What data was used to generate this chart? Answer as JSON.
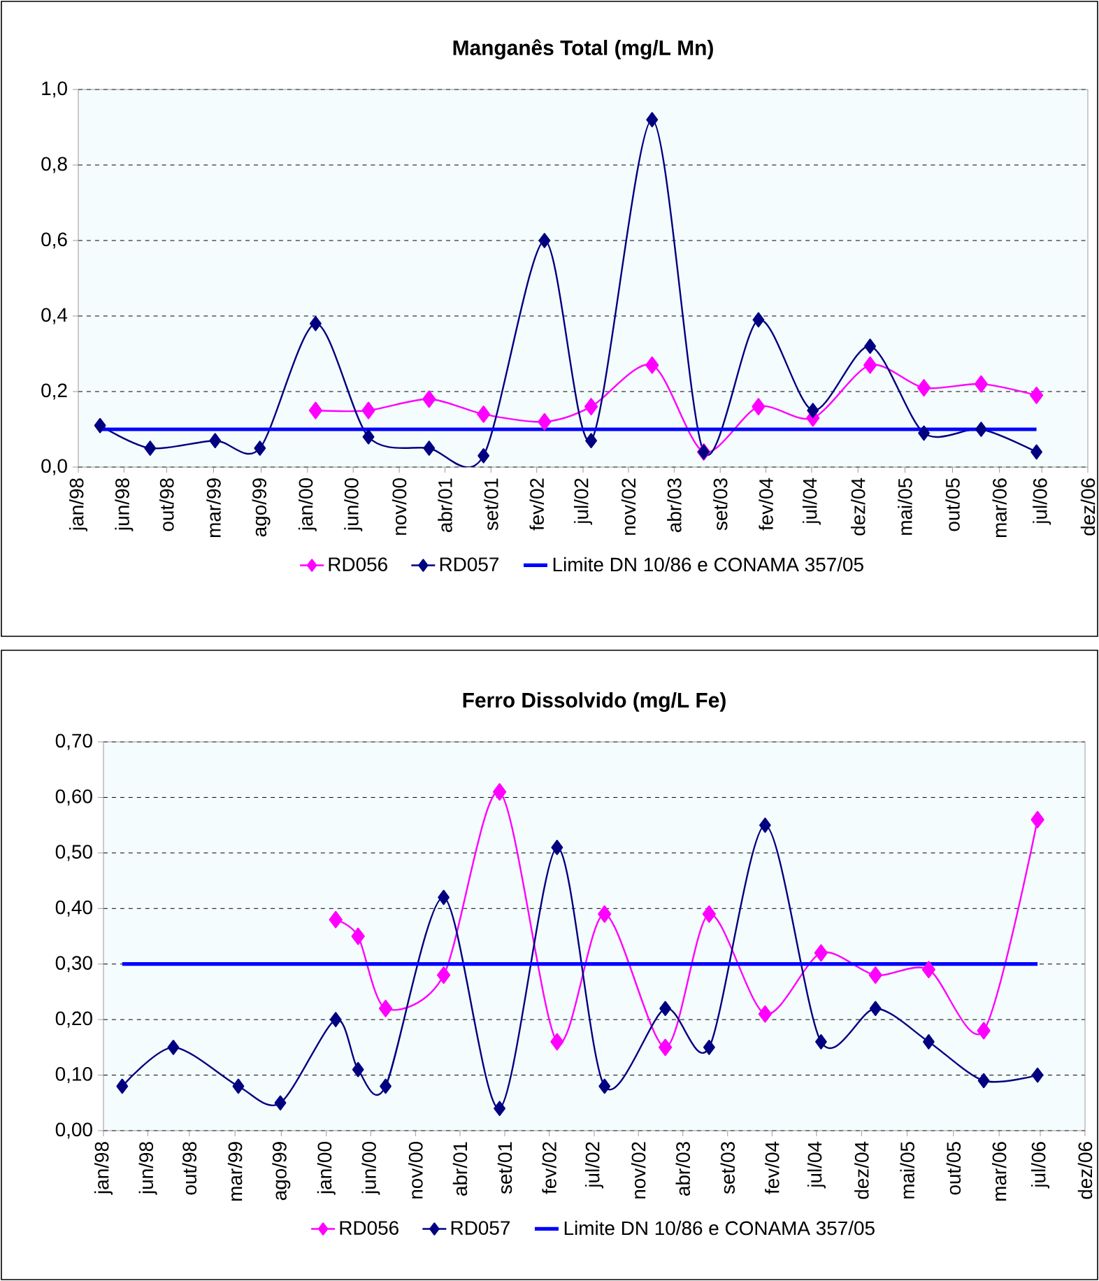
{
  "chart_data": [
    {
      "type": "line",
      "title": "Manganês Total (mg/L Mn)",
      "marker": "diamond",
      "grid": "y",
      "legend": "bottom",
      "xlim": [
        "1998-01-20",
        "2006-12-10"
      ],
      "xticks": [
        {
          "value": "1998-01-20",
          "label": "jan/98"
        },
        {
          "value": "1998-06-16",
          "label": "jun/98"
        },
        {
          "value": "1998-10-31",
          "label": "out/98"
        },
        {
          "value": "1999-03-31",
          "label": "mar/99"
        },
        {
          "value": "1999-08-31",
          "label": "ago/99"
        },
        {
          "value": "2000-01-27",
          "label": "jan/00"
        },
        {
          "value": "2000-06-22",
          "label": "jun/00"
        },
        {
          "value": "2000-11-17",
          "label": "nov/00"
        },
        {
          "value": "2001-04-13",
          "label": "abr/01"
        },
        {
          "value": "2001-09-08",
          "label": "set/01"
        },
        {
          "value": "2002-02-02",
          "label": "fev/02"
        },
        {
          "value": "2002-07-01",
          "label": "jul/02"
        },
        {
          "value": "2002-11-24",
          "label": "nov/02"
        },
        {
          "value": "2003-04-20",
          "label": "abr/03"
        },
        {
          "value": "2003-09-15",
          "label": "set/03"
        },
        {
          "value": "2004-02-09",
          "label": "fev/04"
        },
        {
          "value": "2004-07-05",
          "label": "jul/04"
        },
        {
          "value": "2004-12-01",
          "label": "dez/04"
        },
        {
          "value": "2005-05-01",
          "label": "mai/05"
        },
        {
          "value": "2005-10-01",
          "label": "out/05"
        },
        {
          "value": "2006-03-01",
          "label": "mar/06"
        },
        {
          "value": "2006-07-15",
          "label": "jul/06"
        },
        {
          "value": "2006-12-10",
          "label": "dez/06"
        }
      ],
      "ylim": [
        0,
        1.0
      ],
      "yticks": [
        {
          "value": 0,
          "label": "0,0"
        },
        {
          "value": 0.2,
          "label": "0,2"
        },
        {
          "value": 0.4,
          "label": "0,4"
        },
        {
          "value": 0.6,
          "label": "0,6"
        },
        {
          "value": 0.8,
          "label": "0,8"
        },
        {
          "value": 1.0,
          "label": "1,0"
        }
      ],
      "series": [
        {
          "name": "RD056",
          "color": "#ff00ff",
          "x": [
            "2000-02-22",
            "2000-08-10",
            "2001-02-21",
            "2001-08-15",
            "2002-02-27",
            "2002-07-27",
            "2003-02-08",
            "2003-07-24",
            "2004-01-16",
            "2004-07-09",
            "2005-01-09",
            "2005-07-01",
            "2006-01-01",
            "2006-06-28"
          ],
          "values": [
            0.15,
            0.15,
            0.18,
            0.14,
            0.12,
            0.16,
            0.27,
            0.04,
            0.16,
            0.13,
            0.27,
            0.21,
            0.22,
            0.19
          ]
        },
        {
          "name": "RD057",
          "color": "#000080",
          "x": [
            "1998-03-31",
            "1998-09-08",
            "1999-04-05",
            "1999-08-27",
            "2000-02-22",
            "2000-08-10",
            "2001-02-21",
            "2001-08-15",
            "2002-02-27",
            "2002-07-27",
            "2003-02-08",
            "2003-07-24",
            "2004-01-16",
            "2004-07-09",
            "2005-01-09",
            "2005-07-01",
            "2006-01-01",
            "2006-06-28"
          ],
          "values": [
            0.11,
            0.05,
            0.07,
            0.05,
            0.38,
            0.08,
            0.05,
            0.03,
            0.6,
            0.07,
            0.92,
            0.04,
            0.39,
            0.15,
            0.32,
            0.09,
            0.1,
            0.04
          ]
        },
        {
          "name": "Limite DN 10/86 e CONAMA 357/05",
          "color": "#0000ff",
          "marker": "none",
          "x": [
            "1998-03-31",
            "2006-06-28"
          ],
          "values": [
            0.1,
            0.1
          ]
        }
      ]
    },
    {
      "type": "line",
      "title": "Ferro Dissolvido (mg/L Fe)",
      "marker": "diamond",
      "grid": "y",
      "legend": "bottom",
      "xlim": [
        "1998-01-20",
        "2006-12-10"
      ],
      "xticks": [
        {
          "value": "1998-01-20",
          "label": "jan/98"
        },
        {
          "value": "1998-06-16",
          "label": "jun/98"
        },
        {
          "value": "1998-10-31",
          "label": "out/98"
        },
        {
          "value": "1999-03-31",
          "label": "mar/99"
        },
        {
          "value": "1999-08-31",
          "label": "ago/99"
        },
        {
          "value": "2000-01-27",
          "label": "jan/00"
        },
        {
          "value": "2000-06-22",
          "label": "jun/00"
        },
        {
          "value": "2000-11-17",
          "label": "nov/00"
        },
        {
          "value": "2001-04-13",
          "label": "abr/01"
        },
        {
          "value": "2001-09-08",
          "label": "set/01"
        },
        {
          "value": "2002-02-02",
          "label": "fev/02"
        },
        {
          "value": "2002-07-01",
          "label": "jul/02"
        },
        {
          "value": "2002-11-24",
          "label": "nov/02"
        },
        {
          "value": "2003-04-20",
          "label": "abr/03"
        },
        {
          "value": "2003-09-15",
          "label": "set/03"
        },
        {
          "value": "2004-02-09",
          "label": "fev/04"
        },
        {
          "value": "2004-07-05",
          "label": "jul/04"
        },
        {
          "value": "2004-12-01",
          "label": "dez/04"
        },
        {
          "value": "2005-05-01",
          "label": "mai/05"
        },
        {
          "value": "2005-10-01",
          "label": "out/05"
        },
        {
          "value": "2006-03-01",
          "label": "mar/06"
        },
        {
          "value": "2006-07-15",
          "label": "jul/06"
        },
        {
          "value": "2006-12-10",
          "label": "dez/06"
        }
      ],
      "ylim": [
        0,
        0.7
      ],
      "yticks": [
        {
          "value": 0,
          "label": "0,00"
        },
        {
          "value": 0.1,
          "label": "0,10"
        },
        {
          "value": 0.2,
          "label": "0,20"
        },
        {
          "value": 0.3,
          "label": "0,30"
        },
        {
          "value": 0.4,
          "label": "0,40"
        },
        {
          "value": 0.5,
          "label": "0,50"
        },
        {
          "value": 0.6,
          "label": "0,60"
        },
        {
          "value": 0.7,
          "label": "0,70"
        }
      ],
      "series": [
        {
          "name": "RD056",
          "color": "#ff00ff",
          "x": [
            "2000-02-27",
            "2000-05-11",
            "2000-08-10",
            "2001-02-18",
            "2001-08-22",
            "2002-02-28",
            "2002-08-04",
            "2003-02-21",
            "2003-07-16",
            "2004-01-17",
            "2004-07-20",
            "2005-01-16",
            "2005-07-11",
            "2006-01-09",
            "2006-07-06"
          ],
          "values": [
            0.38,
            0.35,
            0.22,
            0.28,
            0.61,
            0.16,
            0.39,
            0.15,
            0.39,
            0.21,
            0.32,
            0.28,
            0.29,
            0.18,
            0.56
          ]
        },
        {
          "name": "RD057",
          "color": "#000080",
          "x": [
            "1998-03-23",
            "1998-09-08",
            "1999-04-11",
            "1999-08-28",
            "2000-02-27",
            "2000-05-11",
            "2000-08-10",
            "2001-02-18",
            "2001-08-22",
            "2002-02-28",
            "2002-08-04",
            "2003-02-21",
            "2003-07-16",
            "2004-01-17",
            "2004-07-20",
            "2005-01-16",
            "2005-07-11",
            "2006-01-09",
            "2006-07-06"
          ],
          "values": [
            0.08,
            0.15,
            0.08,
            0.05,
            0.2,
            0.11,
            0.08,
            0.42,
            0.04,
            0.51,
            0.08,
            0.22,
            0.15,
            0.55,
            0.16,
            0.22,
            0.16,
            0.09,
            0.1
          ]
        },
        {
          "name": "Limite DN 10/86 e CONAMA 357/05",
          "color": "#0000ff",
          "marker": "none",
          "x": [
            "1998-03-23",
            "2006-07-06"
          ],
          "values": [
            0.3,
            0.3
          ]
        }
      ]
    }
  ]
}
